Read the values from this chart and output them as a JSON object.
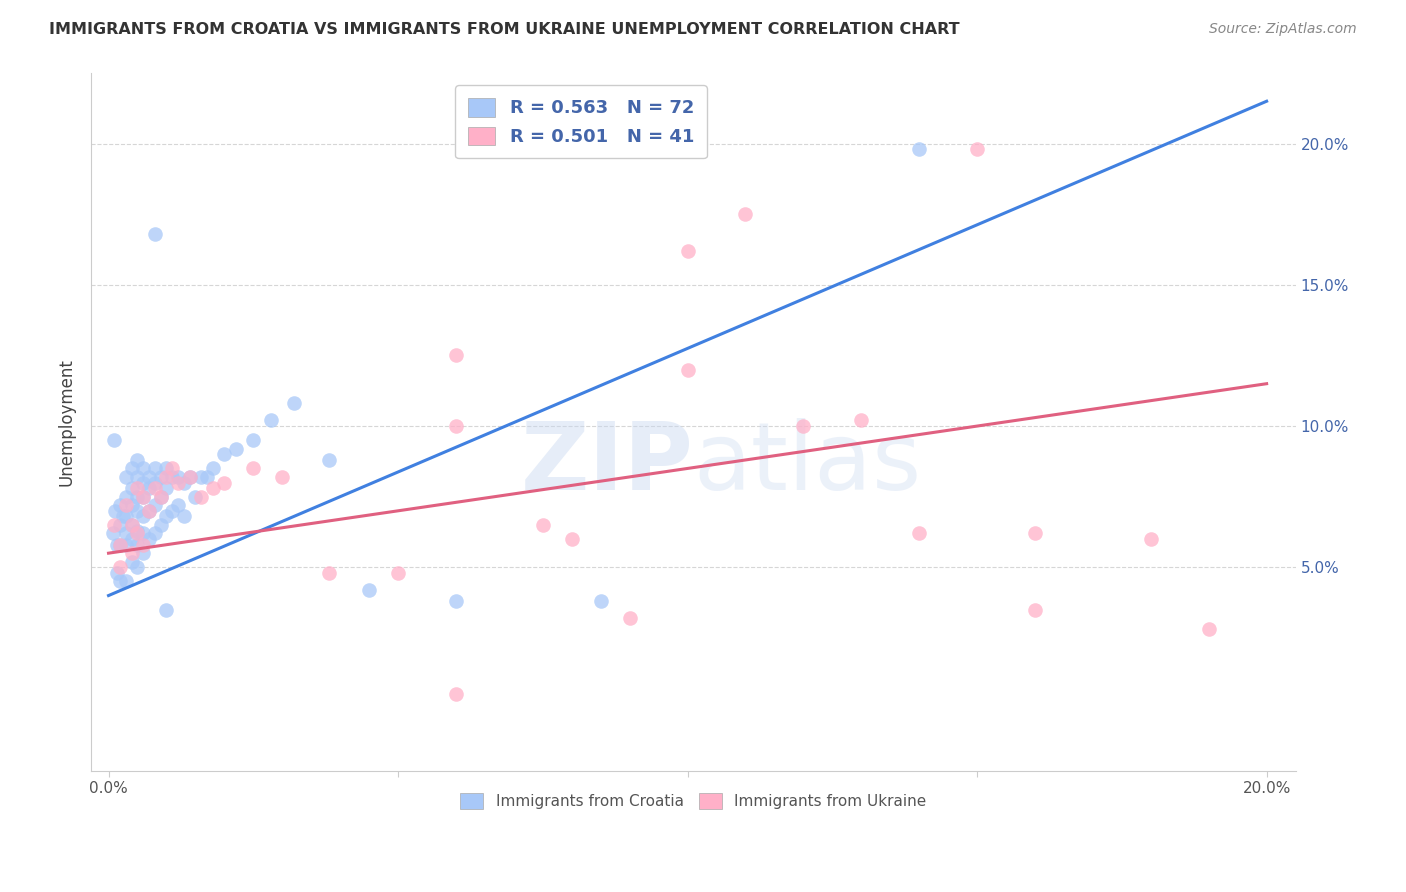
{
  "title": "IMMIGRANTS FROM CROATIA VS IMMIGRANTS FROM UKRAINE UNEMPLOYMENT CORRELATION CHART",
  "source": "Source: ZipAtlas.com",
  "ylabel": "Unemployment",
  "xlim": [
    -0.003,
    0.205
  ],
  "ylim": [
    -0.022,
    0.225
  ],
  "yticks": [
    0.05,
    0.1,
    0.15,
    0.2
  ],
  "xticks": [
    0.0,
    0.05,
    0.1,
    0.15,
    0.2
  ],
  "xtick_labels": [
    "0.0%",
    "",
    "",
    "",
    "20.0%"
  ],
  "ytick_labels_right": [
    "5.0%",
    "10.0%",
    "15.0%",
    "20.0%"
  ],
  "watermark": "ZIPatlas",
  "R_croatia": 0.563,
  "N_croatia": 72,
  "R_ukraine": 0.501,
  "N_ukraine": 41,
  "color_croatia": "#A8C8F8",
  "color_ukraine": "#FFB0C8",
  "line_color_croatia": "#4080E0",
  "line_color_ukraine": "#E06080",
  "background_color": "#FFFFFF",
  "grid_color": "#CCCCCC",
  "title_color": "#333333",
  "source_color": "#888888",
  "axis_label_color": "#4466AA",
  "croatia_scatter_x": [
    0.0008,
    0.001,
    0.0012,
    0.0015,
    0.0015,
    0.002,
    0.002,
    0.002,
    0.002,
    0.0025,
    0.003,
    0.003,
    0.003,
    0.003,
    0.003,
    0.003,
    0.004,
    0.004,
    0.004,
    0.004,
    0.004,
    0.004,
    0.005,
    0.005,
    0.005,
    0.005,
    0.005,
    0.005,
    0.005,
    0.006,
    0.006,
    0.006,
    0.006,
    0.006,
    0.006,
    0.007,
    0.007,
    0.007,
    0.007,
    0.008,
    0.008,
    0.008,
    0.008,
    0.009,
    0.009,
    0.009,
    0.01,
    0.01,
    0.01,
    0.011,
    0.011,
    0.012,
    0.012,
    0.013,
    0.013,
    0.014,
    0.015,
    0.016,
    0.017,
    0.018,
    0.02,
    0.022,
    0.025,
    0.028,
    0.032,
    0.038,
    0.045,
    0.06,
    0.008,
    0.01,
    0.085,
    0.14
  ],
  "croatia_scatter_y": [
    0.062,
    0.095,
    0.07,
    0.058,
    0.048,
    0.072,
    0.065,
    0.058,
    0.045,
    0.068,
    0.082,
    0.075,
    0.068,
    0.062,
    0.058,
    0.045,
    0.085,
    0.078,
    0.072,
    0.065,
    0.06,
    0.052,
    0.088,
    0.082,
    0.075,
    0.07,
    0.063,
    0.058,
    0.05,
    0.085,
    0.08,
    0.075,
    0.068,
    0.062,
    0.055,
    0.082,
    0.078,
    0.07,
    0.06,
    0.085,
    0.08,
    0.072,
    0.062,
    0.082,
    0.075,
    0.065,
    0.085,
    0.078,
    0.068,
    0.082,
    0.07,
    0.082,
    0.072,
    0.08,
    0.068,
    0.082,
    0.075,
    0.082,
    0.082,
    0.085,
    0.09,
    0.092,
    0.095,
    0.102,
    0.108,
    0.088,
    0.042,
    0.038,
    0.168,
    0.035,
    0.038,
    0.198
  ],
  "ukraine_scatter_x": [
    0.001,
    0.002,
    0.002,
    0.003,
    0.004,
    0.004,
    0.005,
    0.005,
    0.006,
    0.006,
    0.007,
    0.008,
    0.009,
    0.01,
    0.011,
    0.012,
    0.014,
    0.016,
    0.018,
    0.02,
    0.025,
    0.03,
    0.038,
    0.05,
    0.06,
    0.075,
    0.09,
    0.11,
    0.13,
    0.15,
    0.16,
    0.18,
    0.19,
    0.06,
    0.08,
    0.1,
    0.12,
    0.14,
    0.16,
    0.06,
    0.1
  ],
  "ukraine_scatter_y": [
    0.065,
    0.058,
    0.05,
    0.072,
    0.065,
    0.055,
    0.078,
    0.062,
    0.075,
    0.058,
    0.07,
    0.078,
    0.075,
    0.082,
    0.085,
    0.08,
    0.082,
    0.075,
    0.078,
    0.08,
    0.085,
    0.082,
    0.048,
    0.048,
    0.1,
    0.065,
    0.032,
    0.175,
    0.102,
    0.198,
    0.062,
    0.06,
    0.028,
    0.125,
    0.06,
    0.12,
    0.1,
    0.062,
    0.035,
    0.005,
    0.162
  ]
}
